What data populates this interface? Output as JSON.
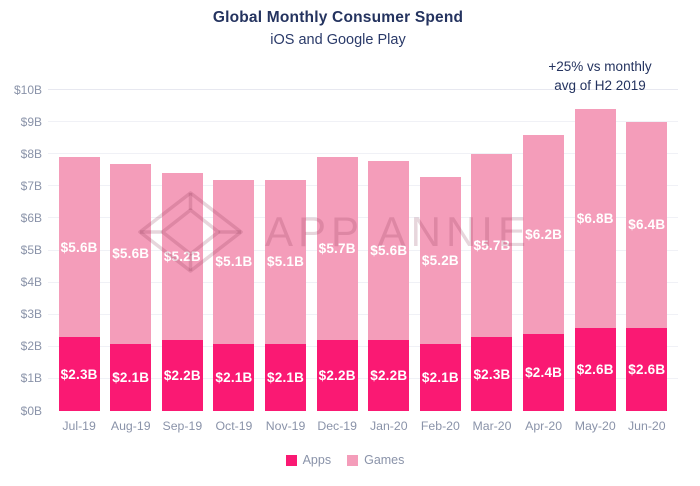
{
  "chart_data": {
    "type": "bar",
    "stacked": true,
    "title": "Global Monthly Consumer Spend",
    "subtitle": "iOS and Google Play",
    "annotation": {
      "line1": "+25% vs monthly",
      "line2": "avg of H2 2019"
    },
    "categories": [
      "Jul-19",
      "Aug-19",
      "Sep-19",
      "Oct-19",
      "Nov-19",
      "Dec-19",
      "Jan-20",
      "Feb-20",
      "Mar-20",
      "Apr-20",
      "May-20",
      "Jun-20"
    ],
    "series": [
      {
        "name": "Apps",
        "color": "#FA1973",
        "values": [
          2.3,
          2.1,
          2.2,
          2.1,
          2.1,
          2.2,
          2.2,
          2.1,
          2.3,
          2.4,
          2.6,
          2.6
        ],
        "labels": [
          "$2.3B",
          "$2.1B",
          "$2.2B",
          "$2.1B",
          "$2.1B",
          "$2.2B",
          "$2.2B",
          "$2.1B",
          "$2.3B",
          "$2.4B",
          "$2.6B",
          "$2.6B"
        ]
      },
      {
        "name": "Games",
        "color": "#F49DBA",
        "values": [
          5.6,
          5.6,
          5.2,
          5.1,
          5.1,
          5.7,
          5.6,
          5.2,
          5.7,
          6.2,
          6.8,
          6.4
        ],
        "labels": [
          "$5.6B",
          "$5.6B",
          "$5.2B",
          "$5.1B",
          "$5.1B",
          "$5.7B",
          "$5.6B",
          "$5.2B",
          "$5.7B",
          "$6.2B",
          "$6.8B",
          "$6.4B"
        ]
      }
    ],
    "yticks": [
      {
        "label": "$0B",
        "value": 0
      },
      {
        "label": "$1B",
        "value": 1
      },
      {
        "label": "$2B",
        "value": 2
      },
      {
        "label": "$3B",
        "value": 3
      },
      {
        "label": "$4B",
        "value": 4
      },
      {
        "label": "$5B",
        "value": 5
      },
      {
        "label": "$6B",
        "value": 6
      },
      {
        "label": "$7B",
        "value": 7
      },
      {
        "label": "$8B",
        "value": 8
      },
      {
        "label": "$9B",
        "value": 9
      },
      {
        "label": "$10B",
        "value": 10
      }
    ],
    "ylim": [
      0,
      10
    ],
    "grid": true,
    "legend_position": "bottom"
  },
  "watermark": {
    "text": "APP ANNIE",
    "logo": "gem-diamond"
  }
}
